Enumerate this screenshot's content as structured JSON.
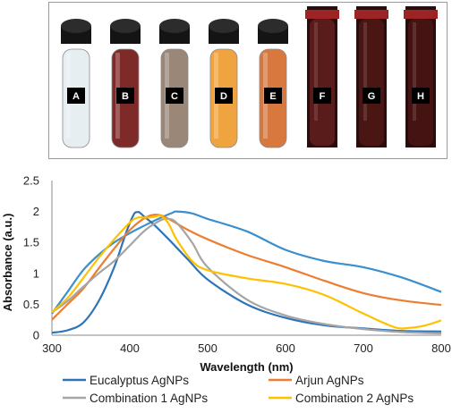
{
  "photo": {
    "vials": [
      {
        "label": "A",
        "liquid": "#e6eef2",
        "cap": "#141414",
        "style": "capped"
      },
      {
        "label": "B",
        "liquid": "#7e2a28",
        "cap": "#141414",
        "style": "capped"
      },
      {
        "label": "C",
        "liquid": "#9a8778",
        "cap": "#141414",
        "style": "capped"
      },
      {
        "label": "D",
        "liquid": "#f0a440",
        "cap": "#141414",
        "style": "capped"
      },
      {
        "label": "E",
        "liquid": "#d8783e",
        "cap": "#141414",
        "style": "capped"
      },
      {
        "label": "F",
        "liquid": "#5a1c1a",
        "cap": "#9c2424",
        "style": "open"
      },
      {
        "label": "G",
        "liquid": "#4a1614",
        "cap": "#9c2424",
        "style": "open"
      },
      {
        "label": "H",
        "liquid": "#451412",
        "cap": "#9c2424",
        "style": "open"
      }
    ]
  },
  "chart_data": {
    "type": "line",
    "xlabel": "Wavelength (nm)",
    "ylabel": "Absorbance (a.u.)",
    "xlim": [
      300,
      800
    ],
    "ylim": [
      0,
      2.5
    ],
    "xticks": [
      300,
      400,
      500,
      600,
      700,
      800
    ],
    "yticks": [
      0,
      0.5,
      1,
      1.5,
      2,
      2.5
    ],
    "ytick_labels": [
      "0",
      "0.5",
      "1",
      "1.5",
      "2",
      "2.5"
    ],
    "grid": false,
    "legend_position": "bottom",
    "series": [
      {
        "name": "Eucalyptus  AgNPs",
        "color": "#2e74b8",
        "x": [
          300,
          320,
          340,
          360,
          380,
          395,
          405,
          410,
          413,
          420,
          430,
          450,
          475,
          500,
          550,
          600,
          650,
          700,
          750,
          800
        ],
        "y": [
          0.04,
          0.08,
          0.2,
          0.55,
          1.1,
          1.65,
          1.95,
          1.99,
          1.98,
          1.9,
          1.8,
          1.55,
          1.22,
          0.9,
          0.5,
          0.28,
          0.16,
          0.11,
          0.07,
          0.06
        ]
      },
      {
        "name": "Arjun AgNPs",
        "color": "#ed7d31",
        "x": [
          300,
          320,
          340,
          360,
          380,
          400,
          420,
          435,
          450,
          475,
          500,
          550,
          600,
          650,
          700,
          750,
          800
        ],
        "y": [
          0.25,
          0.5,
          0.75,
          1.08,
          1.4,
          1.7,
          1.9,
          1.95,
          1.88,
          1.7,
          1.55,
          1.3,
          1.1,
          0.88,
          0.68,
          0.56,
          0.49
        ]
      },
      {
        "name": "Combination 1 AgNPs",
        "color": "#a5a5a5",
        "x": [
          300,
          320,
          340,
          360,
          380,
          400,
          420,
          440,
          450,
          460,
          480,
          500,
          550,
          600,
          650,
          700,
          750,
          800
        ],
        "y": [
          0.37,
          0.55,
          0.78,
          1.0,
          1.2,
          1.45,
          1.7,
          1.86,
          1.88,
          1.82,
          1.5,
          1.1,
          0.58,
          0.32,
          0.18,
          0.1,
          0.05,
          0.03
        ]
      },
      {
        "name": "Combination 2 AgNPs",
        "color": "#ffc000",
        "x": [
          300,
          320,
          340,
          360,
          380,
          400,
          410,
          420,
          430,
          440,
          450,
          460,
          480,
          500,
          550,
          600,
          650,
          700,
          740,
          760,
          780,
          800
        ],
        "y": [
          0.37,
          0.6,
          0.92,
          1.25,
          1.55,
          1.82,
          1.9,
          1.9,
          1.91,
          1.93,
          1.8,
          1.55,
          1.2,
          1.05,
          0.92,
          0.83,
          0.65,
          0.35,
          0.13,
          0.12,
          0.16,
          0.24
        ]
      },
      {
        "name": "",
        "color": "#3a8fce",
        "x": [
          300,
          320,
          340,
          360,
          380,
          400,
          420,
          440,
          455,
          460,
          480,
          500,
          550,
          600,
          650,
          700,
          750,
          800
        ],
        "y": [
          0.35,
          0.7,
          1.05,
          1.3,
          1.5,
          1.65,
          1.78,
          1.9,
          1.98,
          2.0,
          1.97,
          1.88,
          1.68,
          1.38,
          1.2,
          1.1,
          0.93,
          0.7
        ]
      }
    ]
  }
}
